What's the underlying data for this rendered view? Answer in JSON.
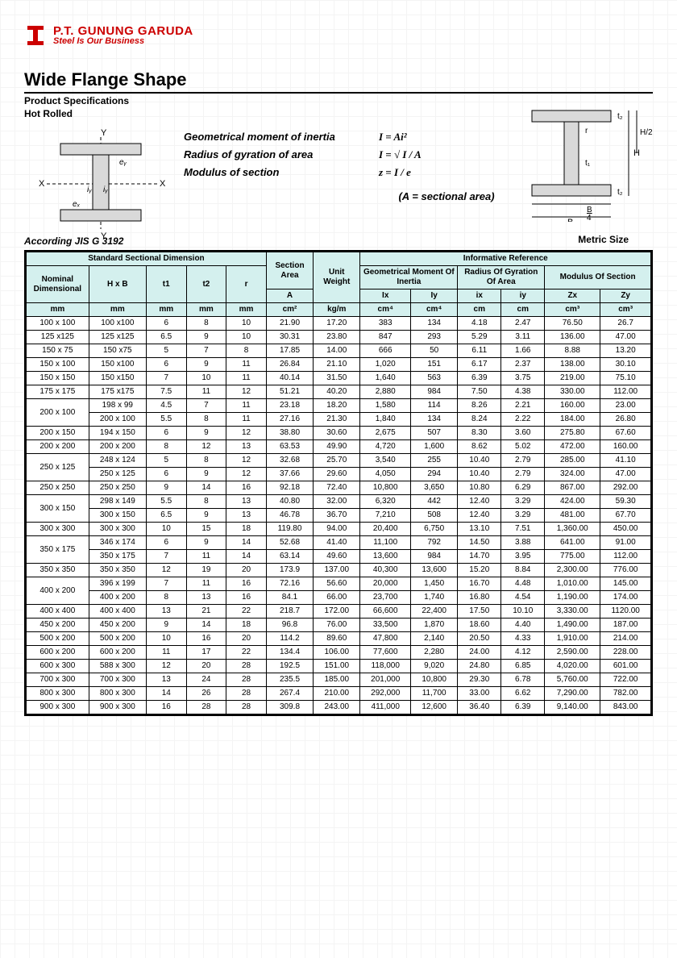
{
  "company": {
    "name": "P.T. GUNUNG GARUDA",
    "tagline": "Steel Is Our Business"
  },
  "title": "Wide Flange Shape",
  "spec": "Product Specifications",
  "hot": "Hot Rolled",
  "formulas": {
    "inertia_label": "Geometrical moment of inertia",
    "inertia_eq": "I = Ai²",
    "radius_label": "Radius of gyration of area",
    "radius_eq": "I = √ I / A",
    "modulus_label": "Modulus of section",
    "modulus_eq": "z = I / e",
    "area": "(A = sectional area)"
  },
  "according": "According JIS G 3192",
  "metric": "Metric Size",
  "headers": {
    "std": "Standard Sectional Dimension",
    "sec_area": "Section Area",
    "unit_wt": "Unit Weight",
    "info": "Informative Reference",
    "geo": "Geometrical Moment Of Inertia",
    "rad": "Radius Of Gyration Of Area",
    "mod": "Modulus Of Section",
    "nom": "Nominal Dimensional",
    "hxb": "H x B",
    "t1": "t1",
    "t2": "t2",
    "r": "r",
    "A": "A",
    "ix": "Ix",
    "iy": "Iy",
    "ixr": "ix",
    "iyr": "iy",
    "zx": "Zx",
    "zy": "Zy",
    "mm": "mm",
    "cm2": "cm²",
    "kgm": "kg/m",
    "cm4": "cm⁴",
    "cm": "cm",
    "cm3": "cm³"
  },
  "rows": [
    {
      "nom": "100 x 100",
      "hxb": "100 x100",
      "t1": "6",
      "t2": "8",
      "r": "10",
      "A": "21.90",
      "W": "17.20",
      "Ix": "383",
      "Iy": "134",
      "ix": "4.18",
      "iy": "2.47",
      "Zx": "76.50",
      "Zy": "26.7"
    },
    {
      "nom": "125 x125",
      "hxb": "125 x125",
      "t1": "6.5",
      "t2": "9",
      "r": "10",
      "A": "30.31",
      "W": "23.80",
      "Ix": "847",
      "Iy": "293",
      "ix": "5.29",
      "iy": "3.11",
      "Zx": "136.00",
      "Zy": "47.00"
    },
    {
      "nom": "150 x 75",
      "hxb": "150 x75",
      "t1": "5",
      "t2": "7",
      "r": "8",
      "A": "17.85",
      "W": "14.00",
      "Ix": "666",
      "Iy": "50",
      "ix": "6.11",
      "iy": "1.66",
      "Zx": "8.88",
      "Zy": "13.20"
    },
    {
      "nom": "150 x 100",
      "hxb": "150 x100",
      "t1": "6",
      "t2": "9",
      "r": "11",
      "A": "26.84",
      "W": "21.10",
      "Ix": "1,020",
      "Iy": "151",
      "ix": "6.17",
      "iy": "2.37",
      "Zx": "138.00",
      "Zy": "30.10"
    },
    {
      "nom": "150 x 150",
      "hxb": "150 x150",
      "t1": "7",
      "t2": "10",
      "r": "11",
      "A": "40.14",
      "W": "31.50",
      "Ix": "1,640",
      "Iy": "563",
      "ix": "6.39",
      "iy": "3.75",
      "Zx": "219.00",
      "Zy": "75.10"
    },
    {
      "nom": "175 x 175",
      "hxb": "175 x175",
      "t1": "7.5",
      "t2": "11",
      "r": "12",
      "A": "51.21",
      "W": "40.20",
      "Ix": "2,880",
      "Iy": "984",
      "ix": "7.50",
      "iy": "4.38",
      "Zx": "330.00",
      "Zy": "112.00"
    },
    {
      "nom": "200 x 100",
      "span": 2,
      "sub": [
        {
          "hxb": "198 x 99",
          "t1": "4.5",
          "t2": "7",
          "r": "11",
          "A": "23.18",
          "W": "18.20",
          "Ix": "1,580",
          "Iy": "114",
          "ix": "8.26",
          "iy": "2.21",
          "Zx": "160.00",
          "Zy": "23.00"
        },
        {
          "hxb": "200 x 100",
          "t1": "5.5",
          "t2": "8",
          "r": "11",
          "A": "27.16",
          "W": "21.30",
          "Ix": "1,840",
          "Iy": "134",
          "ix": "8.24",
          "iy": "2.22",
          "Zx": "184.00",
          "Zy": "26.80"
        }
      ]
    },
    {
      "nom": "200 x 150",
      "hxb": "194 x 150",
      "t1": "6",
      "t2": "9",
      "r": "12",
      "A": "38.80",
      "W": "30.60",
      "Ix": "2,675",
      "Iy": "507",
      "ix": "8.30",
      "iy": "3.60",
      "Zx": "275.80",
      "Zy": "67.60"
    },
    {
      "nom": "200 x 200",
      "hxb": "200 x 200",
      "t1": "8",
      "t2": "12",
      "r": "13",
      "A": "63.53",
      "W": "49.90",
      "Ix": "4,720",
      "Iy": "1,600",
      "ix": "8.62",
      "iy": "5.02",
      "Zx": "472.00",
      "Zy": "160.00"
    },
    {
      "nom": "250 x 125",
      "span": 2,
      "sub": [
        {
          "hxb": "248 x 124",
          "t1": "5",
          "t2": "8",
          "r": "12",
          "A": "32.68",
          "W": "25.70",
          "Ix": "3,540",
          "Iy": "255",
          "ix": "10.40",
          "iy": "2.79",
          "Zx": "285.00",
          "Zy": "41.10"
        },
        {
          "hxb": "250 x 125",
          "t1": "6",
          "t2": "9",
          "r": "12",
          "A": "37.66",
          "W": "29.60",
          "Ix": "4,050",
          "Iy": "294",
          "ix": "10.40",
          "iy": "2.79",
          "Zx": "324.00",
          "Zy": "47.00"
        }
      ]
    },
    {
      "nom": "250 x 250",
      "hxb": "250 x  250",
      "t1": "9",
      "t2": "14",
      "r": "16",
      "A": "92.18",
      "W": "72.40",
      "Ix": "10,800",
      "Iy": "3,650",
      "ix": "10.80",
      "iy": "6.29",
      "Zx": "867.00",
      "Zy": "292.00"
    },
    {
      "nom": "300 x 150",
      "span": 2,
      "sub": [
        {
          "hxb": "298 x 149",
          "t1": "5.5",
          "t2": "8",
          "r": "13",
          "A": "40.80",
          "W": "32.00",
          "Ix": "6,320",
          "Iy": "442",
          "ix": "12.40",
          "iy": "3.29",
          "Zx": "424.00",
          "Zy": "59.30"
        },
        {
          "hxb": "300 x 150",
          "t1": "6.5",
          "t2": "9",
          "r": "13",
          "A": "46.78",
          "W": "36.70",
          "Ix": "7,210",
          "Iy": "508",
          "ix": "12.40",
          "iy": "3.29",
          "Zx": "481.00",
          "Zy": "67.70"
        }
      ]
    },
    {
      "nom": "300 x 300",
      "hxb": "300 x 300",
      "t1": "10",
      "t2": "15",
      "r": "18",
      "A": "119.80",
      "W": "94.00",
      "Ix": "20,400",
      "Iy": "6,750",
      "ix": "13.10",
      "iy": "7.51",
      "Zx": "1,360.00",
      "Zy": "450.00"
    },
    {
      "nom": "350 x 175",
      "span": 2,
      "sub": [
        {
          "hxb": "346 x 174",
          "t1": "6",
          "t2": "9",
          "r": "14",
          "A": "52.68",
          "W": "41.40",
          "Ix": "11,100",
          "Iy": "792",
          "ix": "14.50",
          "iy": "3.88",
          "Zx": "641.00",
          "Zy": "91.00"
        },
        {
          "hxb": "350 x 175",
          "t1": "7",
          "t2": "11",
          "r": "14",
          "A": "63.14",
          "W": "49.60",
          "Ix": "13,600",
          "Iy": "984",
          "ix": "14.70",
          "iy": "3.95",
          "Zx": "775.00",
          "Zy": "112.00"
        }
      ]
    },
    {
      "nom": "350 x 350",
      "hxb": "350 x 350",
      "t1": "12",
      "t2": "19",
      "r": "20",
      "A": "173.9",
      "W": "137.00",
      "Ix": "40,300",
      "Iy": "13,600",
      "ix": "15.20",
      "iy": "8.84",
      "Zx": "2,300.00",
      "Zy": "776.00"
    },
    {
      "nom": "400 x 200",
      "span": 2,
      "sub": [
        {
          "hxb": "396 x 199",
          "t1": "7",
          "t2": "11",
          "r": "16",
          "A": "72.16",
          "W": "56.60",
          "Ix": "20,000",
          "Iy": "1,450",
          "ix": "16.70",
          "iy": "4.48",
          "Zx": "1,010.00",
          "Zy": "145.00"
        },
        {
          "hxb": "400 x 200",
          "t1": "8",
          "t2": "13",
          "r": "16",
          "A": "84.1",
          "W": "66.00",
          "Ix": "23,700",
          "Iy": "1,740",
          "ix": "16.80",
          "iy": "4.54",
          "Zx": "1,190.00",
          "Zy": "174.00"
        }
      ]
    },
    {
      "nom": "400 x 400",
      "hxb": "400 x 400",
      "t1": "13",
      "t2": "21",
      "r": "22",
      "A": "218.7",
      "W": "172.00",
      "Ix": "66,600",
      "Iy": "22,400",
      "ix": "17.50",
      "iy": "10.10",
      "Zx": "3,330.00",
      "Zy": "1120.00"
    },
    {
      "nom": "450 x 200",
      "hxb": "450 x 200",
      "t1": "9",
      "t2": "14",
      "r": "18",
      "A": "96.8",
      "W": "76.00",
      "Ix": "33,500",
      "Iy": "1,870",
      "ix": "18.60",
      "iy": "4.40",
      "Zx": "1,490.00",
      "Zy": "187.00"
    },
    {
      "nom": "500 x 200",
      "hxb": "500 x 200",
      "t1": "10",
      "t2": "16",
      "r": "20",
      "A": "114.2",
      "W": "89.60",
      "Ix": "47,800",
      "Iy": "2,140",
      "ix": "20.50",
      "iy": "4.33",
      "Zx": "1,910.00",
      "Zy": "214.00"
    },
    {
      "nom": "600 x 200",
      "hxb": "600 x 200",
      "t1": "11",
      "t2": "17",
      "r": "22",
      "A": "134.4",
      "W": "106.00",
      "Ix": "77,600",
      "Iy": "2,280",
      "ix": "24.00",
      "iy": "4.12",
      "Zx": "2,590.00",
      "Zy": "228.00"
    },
    {
      "nom": "600 x 300",
      "hxb": "588 x 300",
      "t1": "12",
      "t2": "20",
      "r": "28",
      "A": "192.5",
      "W": "151.00",
      "Ix": "118,000",
      "Iy": "9,020",
      "ix": "24.80",
      "iy": "6.85",
      "Zx": "4,020.00",
      "Zy": "601.00"
    },
    {
      "nom": "700 x 300",
      "hxb": "700 x 300",
      "t1": "13",
      "t2": "24",
      "r": "28",
      "A": "235.5",
      "W": "185.00",
      "Ix": "201,000",
      "Iy": "10,800",
      "ix": "29.30",
      "iy": "6.78",
      "Zx": "5,760.00",
      "Zy": "722.00"
    },
    {
      "nom": "800 x 300",
      "hxb": "800 x 300",
      "t1": "14",
      "t2": "26",
      "r": "28",
      "A": "267.4",
      "W": "210.00",
      "Ix": "292,000",
      "Iy": "11,700",
      "ix": "33.00",
      "iy": "6.62",
      "Zx": "7,290.00",
      "Zy": "782.00"
    },
    {
      "nom": "900 x 300",
      "hxb": "900 x 300",
      "t1": "16",
      "t2": "28",
      "r": "28",
      "A": "309.8",
      "W": "243.00",
      "Ix": "411,000",
      "Iy": "12,600",
      "ix": "36.40",
      "iy": "6.39",
      "Zx": "9,140.00",
      "Zy": "843.00"
    }
  ],
  "colors": {
    "header_bg": "#d4f0ee",
    "border": "#000000",
    "logo": "#cc0000"
  }
}
